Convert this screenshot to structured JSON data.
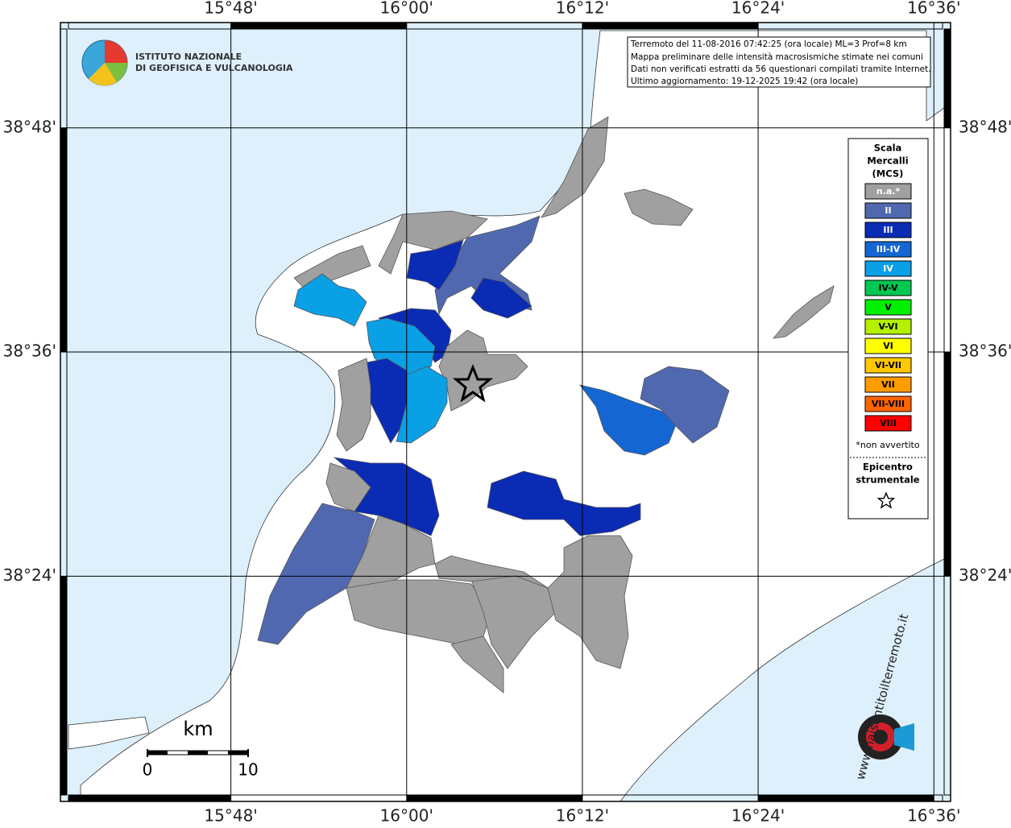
{
  "map": {
    "lonlim": [
      15.606,
      16.619
    ],
    "latlim": [
      38.199,
      38.894
    ],
    "lon_ticks": [
      {
        "value": 15.8,
        "label": "15°48'"
      },
      {
        "value": 16.0,
        "label": "16°00'"
      },
      {
        "value": 16.2,
        "label": "16°12'"
      },
      {
        "value": 16.4,
        "label": "16°24'"
      },
      {
        "value": 16.6,
        "label": "16°36'"
      }
    ],
    "lat_ticks": [
      {
        "value": 38.8,
        "label": "38°48'"
      },
      {
        "value": 38.6,
        "label": "38°36'"
      },
      {
        "value": 38.4,
        "label": "38°24'"
      }
    ],
    "info": [
      "Terremoto del 11-08-2016 07:42:25 (ora locale) ML=3 Prof=8 km",
      "Mappa preliminare delle intensità macrosismiche stimate nei comuni",
      "Dati non verificati estratti da 56 questionari compilati tramite Internet.",
      "Ultimo aggiornamento: 19-12-2025 19:42 (ora locale)"
    ],
    "logo": [
      "ISTITUTO NAZIONALE",
      "DI GEOFISICA E VULCANOLOGIA"
    ],
    "legend": {
      "title": [
        "Scala",
        "Mercalli",
        "(MCS)"
      ],
      "classes": [
        {
          "label": "n.a.*",
          "color": "#a0a0a0"
        },
        {
          "label": "II",
          "color": "#5068b0"
        },
        {
          "label": "III",
          "color": "#0a2bb4"
        },
        {
          "label": "III-IV",
          "color": "#1466d2"
        },
        {
          "label": "IV",
          "color": "#0aa0e6"
        },
        {
          "label": "IV-V",
          "color": "#00c850"
        },
        {
          "label": "V",
          "color": "#00f000"
        },
        {
          "label": "V-VI",
          "color": "#b4f000"
        },
        {
          "label": "VI",
          "color": "#ffff00"
        },
        {
          "label": "VI-VII",
          "color": "#ffc800"
        },
        {
          "label": "VII",
          "color": "#ff9c00"
        },
        {
          "label": "VII-VIII",
          "color": "#ff6400"
        },
        {
          "label": "VIII",
          "color": "#ff0000"
        }
      ],
      "note": "*non avvertito",
      "epicenter": [
        "Epicentro",
        "strumentale"
      ]
    },
    "scale": {
      "unit": "km",
      "ticks": [
        0,
        10
      ]
    },
    "badge": "www.haisentitoilterremoto.it"
  }
}
